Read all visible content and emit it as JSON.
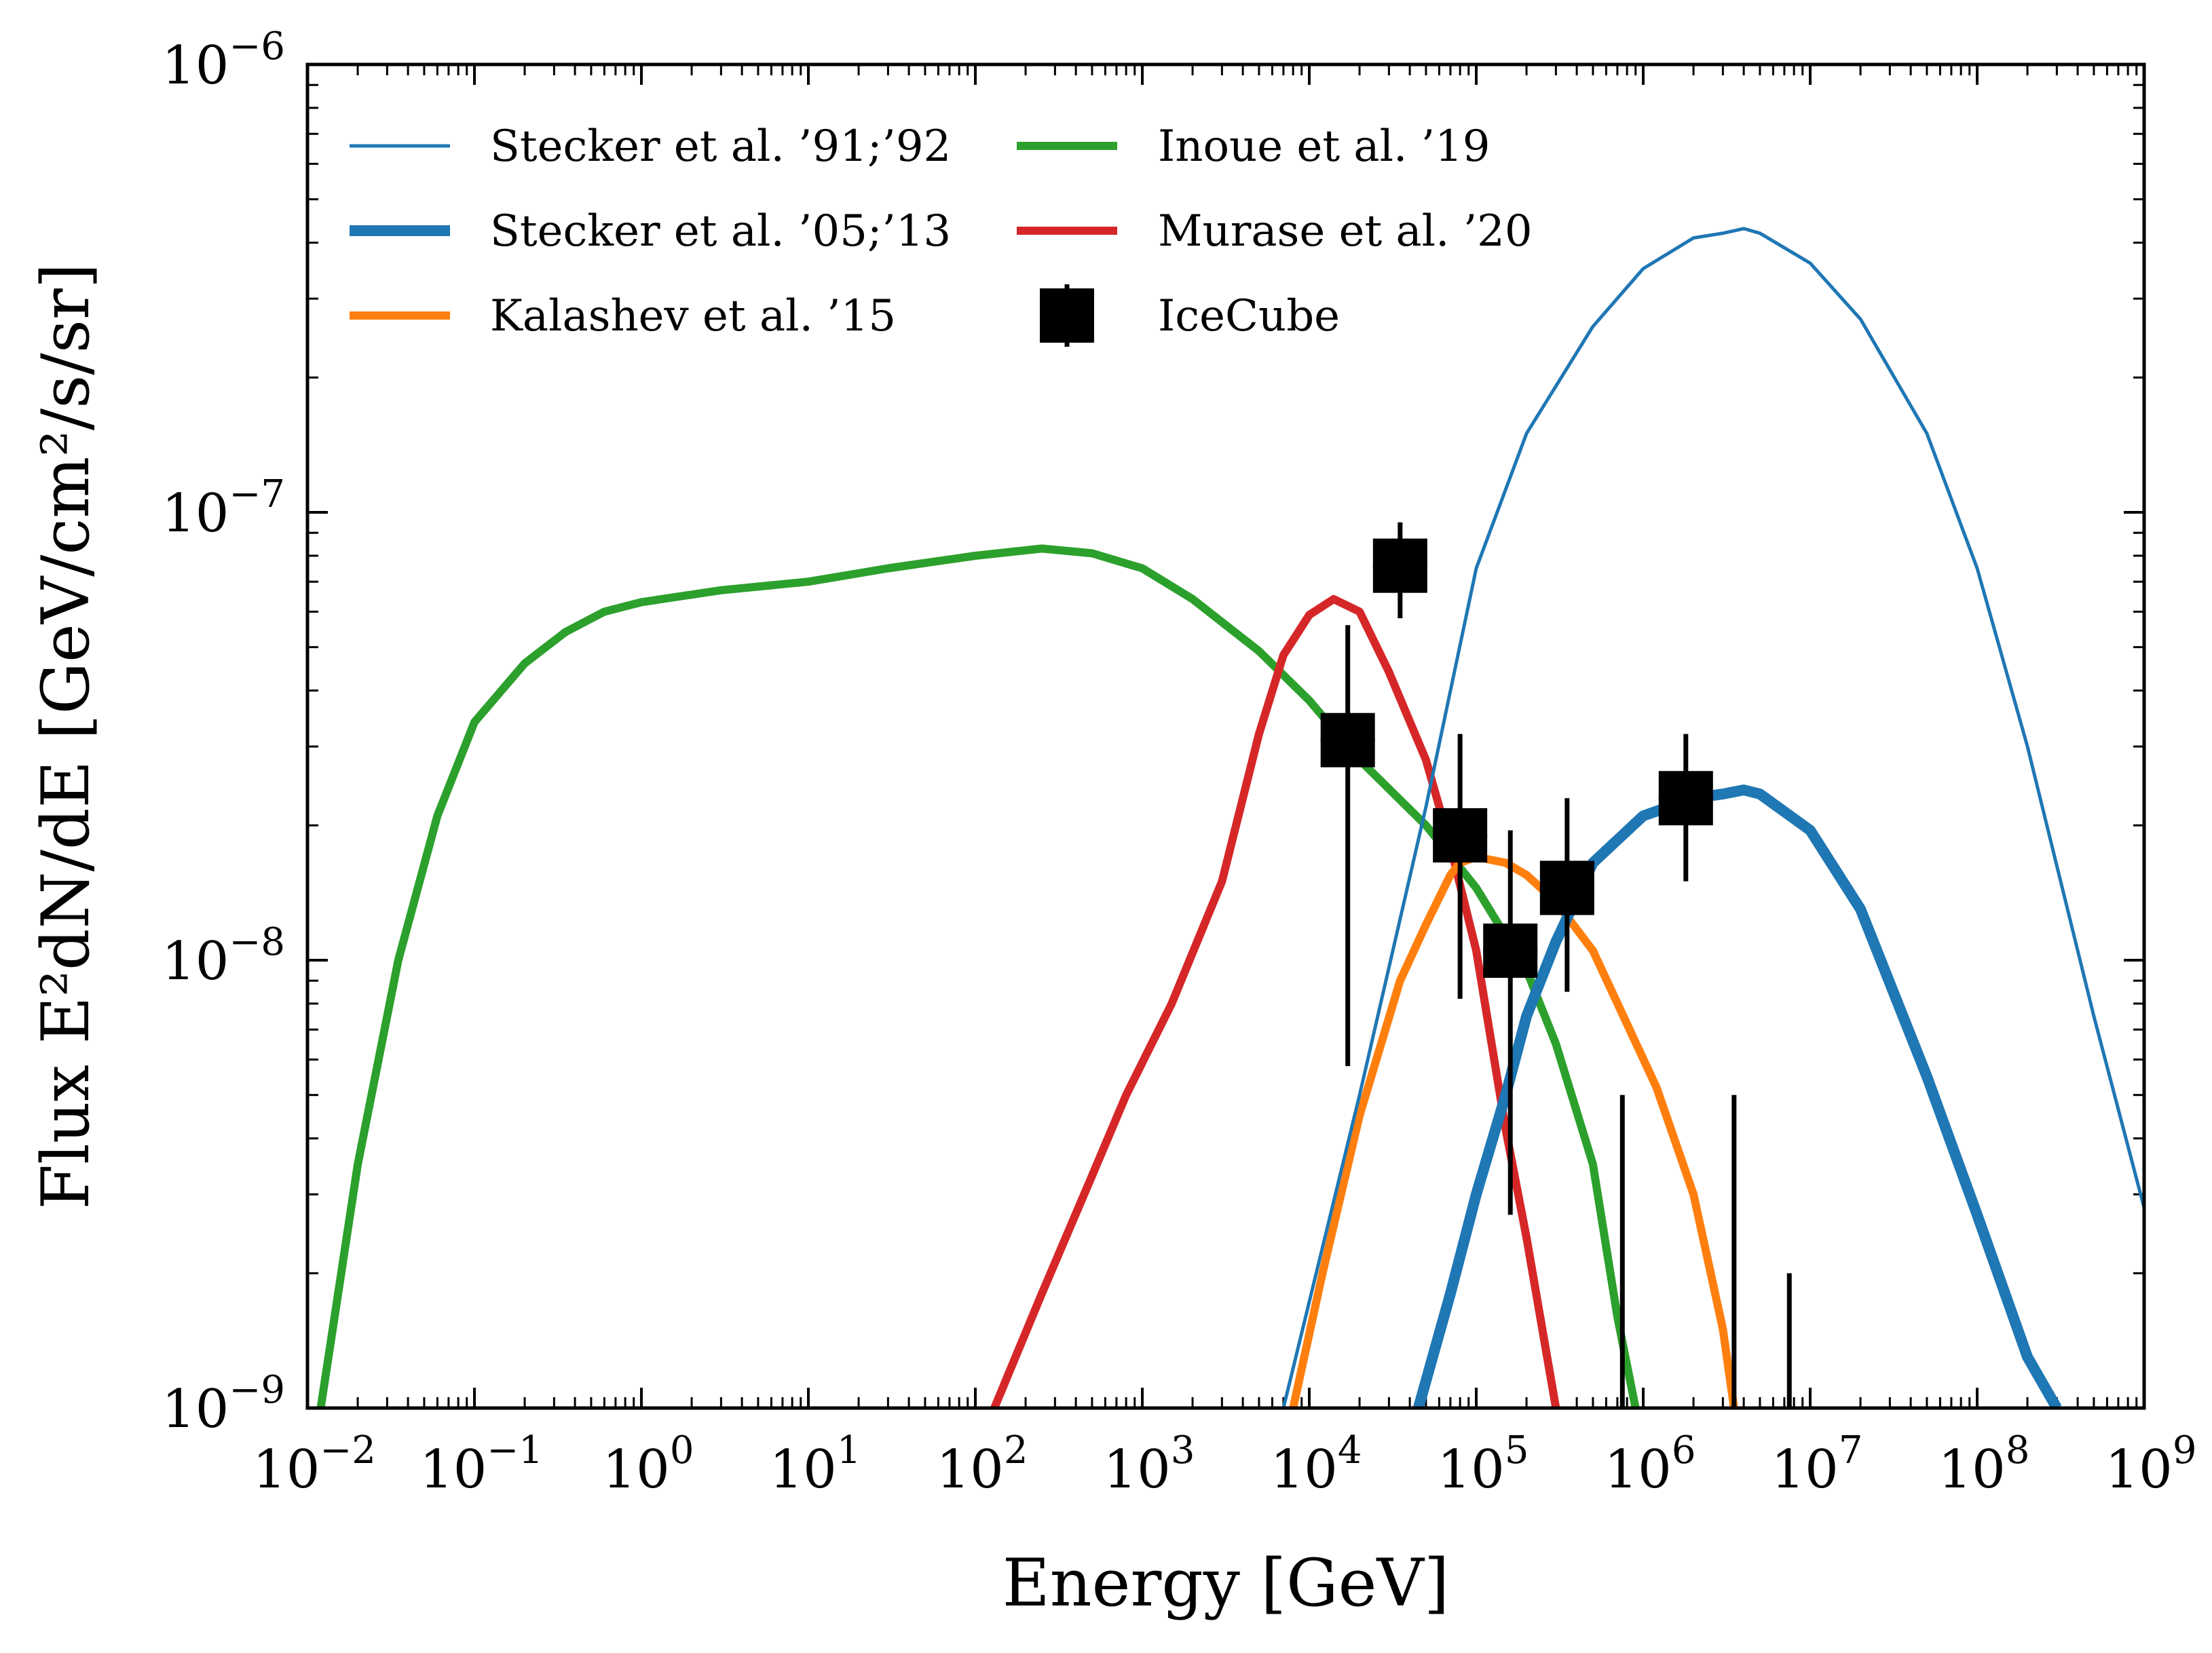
{
  "chart_data": {
    "type": "line",
    "title": "",
    "xlabel": "Energy [GeV]",
    "ylabel": "Flux E²dN/dE [GeV/cm²/s/sr]",
    "xscale": "log",
    "yscale": "log",
    "xlim": [
      0.01,
      1000000000
    ],
    "ylim": [
      1e-09,
      1e-06
    ],
    "x_tick_labels": [
      {
        "value": 0.01,
        "mantissa": "10",
        "exp": "−2"
      },
      {
        "value": 0.1,
        "mantissa": "10",
        "exp": "−1"
      },
      {
        "value": 1,
        "mantissa": "10",
        "exp": "0"
      },
      {
        "value": 10,
        "mantissa": "10",
        "exp": "1"
      },
      {
        "value": 100,
        "mantissa": "10",
        "exp": "2"
      },
      {
        "value": 1000,
        "mantissa": "10",
        "exp": "3"
      },
      {
        "value": 10000,
        "mantissa": "10",
        "exp": "4"
      },
      {
        "value": 100000,
        "mantissa": "10",
        "exp": "5"
      },
      {
        "value": 1000000,
        "mantissa": "10",
        "exp": "6"
      },
      {
        "value": 10000000,
        "mantissa": "10",
        "exp": "7"
      },
      {
        "value": 100000000,
        "mantissa": "10",
        "exp": "8"
      },
      {
        "value": 1000000000,
        "mantissa": "10",
        "exp": "9"
      }
    ],
    "y_tick_labels": [
      {
        "value": 1e-09,
        "mantissa": "10",
        "exp": "−9"
      },
      {
        "value": 1e-08,
        "mantissa": "10",
        "exp": "−8"
      },
      {
        "value": 1e-07,
        "mantissa": "10",
        "exp": "−7"
      },
      {
        "value": 1e-06,
        "mantissa": "10",
        "exp": "−6"
      }
    ],
    "legend": {
      "position": "top-left",
      "columns": 2
    },
    "series": [
      {
        "name": "Stecker et al. ’91;’92",
        "color": "#1f77b4",
        "style": "thin",
        "points": [
          [
            7000,
            1e-09
          ],
          [
            20000,
            5e-09
          ],
          [
            50000,
            2.2e-08
          ],
          [
            100000,
            7.5e-08
          ],
          [
            200000,
            1.5e-07
          ],
          [
            500000,
            2.6e-07
          ],
          [
            1000000,
            3.5e-07
          ],
          [
            2000000,
            4.1e-07
          ],
          [
            3000000,
            4.2e-07
          ],
          [
            4000000,
            4.3e-07
          ],
          [
            5000000,
            4.2e-07
          ],
          [
            10000000,
            3.6e-07
          ],
          [
            20000000,
            2.7e-07
          ],
          [
            50000000,
            1.5e-07
          ],
          [
            100000000,
            7.5e-08
          ],
          [
            200000000,
            3e-08
          ],
          [
            500000000,
            7.5e-09
          ],
          [
            1000000000,
            2.8e-09
          ]
        ]
      },
      {
        "name": "Stecker et al. ’05;’13",
        "color": "#1f77b4",
        "style": "thick",
        "points": [
          [
            45000,
            1e-09
          ],
          [
            70000,
            1.8e-09
          ],
          [
            100000,
            3e-09
          ],
          [
            150000,
            5e-09
          ],
          [
            200000,
            7.5e-09
          ],
          [
            300000,
            1.1e-08
          ],
          [
            500000,
            1.65e-08
          ],
          [
            1000000,
            2.1e-08
          ],
          [
            2000000,
            2.3e-08
          ],
          [
            3000000,
            2.35e-08
          ],
          [
            4000000,
            2.4e-08
          ],
          [
            5000000,
            2.35e-08
          ],
          [
            10000000,
            1.95e-08
          ],
          [
            20000000,
            1.3e-08
          ],
          [
            50000000,
            5.5e-09
          ],
          [
            100000000,
            2.7e-09
          ],
          [
            200000000,
            1.3e-09
          ],
          [
            300000000,
            1e-09
          ]
        ]
      },
      {
        "name": "Kalashev et al. ’15",
        "color": "#ff7f0e",
        "style": "medium",
        "points": [
          [
            8000,
            1e-09
          ],
          [
            12000,
            2e-09
          ],
          [
            20000,
            4.5e-09
          ],
          [
            35000,
            9e-09
          ],
          [
            50000,
            1.2e-08
          ],
          [
            70000,
            1.55e-08
          ],
          [
            80000,
            1.65e-08
          ],
          [
            100000,
            1.7e-08
          ],
          [
            150000,
            1.65e-08
          ],
          [
            200000,
            1.55e-08
          ],
          [
            300000,
            1.35e-08
          ],
          [
            500000,
            1.05e-08
          ],
          [
            800000,
            7.2e-09
          ],
          [
            1200000,
            5.2e-09
          ],
          [
            2000000,
            3e-09
          ],
          [
            3000000,
            1.5e-09
          ],
          [
            3500000,
            1e-09
          ]
        ]
      },
      {
        "name": "Inoue et al. ’19",
        "color": "#2ca02c",
        "style": "medium",
        "points": [
          [
            0.012,
            1e-09
          ],
          [
            0.02,
            3.5e-09
          ],
          [
            0.035,
            1e-08
          ],
          [
            0.06,
            2.1e-08
          ],
          [
            0.1,
            3.4e-08
          ],
          [
            0.2,
            4.6e-08
          ],
          [
            0.35,
            5.4e-08
          ],
          [
            0.6,
            6e-08
          ],
          [
            1,
            6.3e-08
          ],
          [
            3,
            6.7e-08
          ],
          [
            10,
            7e-08
          ],
          [
            30,
            7.5e-08
          ],
          [
            100,
            8e-08
          ],
          [
            250,
            8.3e-08
          ],
          [
            500,
            8.1e-08
          ],
          [
            1000,
            7.5e-08
          ],
          [
            2000,
            6.4e-08
          ],
          [
            5000,
            4.9e-08
          ],
          [
            10000,
            3.8e-08
          ],
          [
            20000,
            2.8e-08
          ],
          [
            50000,
            2e-08
          ],
          [
            100000,
            1.45e-08
          ],
          [
            200000,
            9.5e-09
          ],
          [
            300000,
            6.5e-09
          ],
          [
            500000,
            3.5e-09
          ],
          [
            700000,
            1.6e-09
          ],
          [
            900000,
            1e-09
          ]
        ]
      },
      {
        "name": "Murase et al. ’20",
        "color": "#d62728",
        "style": "medium",
        "points": [
          [
            130,
            1e-09
          ],
          [
            250,
            1.8e-09
          ],
          [
            500,
            3.3e-09
          ],
          [
            800,
            5e-09
          ],
          [
            1500,
            8e-09
          ],
          [
            3000,
            1.5e-08
          ],
          [
            5000,
            3.2e-08
          ],
          [
            7000,
            4.8e-08
          ],
          [
            10000,
            5.9e-08
          ],
          [
            14000,
            6.4e-08
          ],
          [
            20000,
            6e-08
          ],
          [
            30000,
            4.4e-08
          ],
          [
            50000,
            2.8e-08
          ],
          [
            70000,
            1.8e-08
          ],
          [
            100000,
            1.05e-08
          ],
          [
            150000,
            4.2e-09
          ],
          [
            200000,
            2.4e-09
          ],
          [
            300000,
            1e-09
          ]
        ]
      }
    ],
    "icecube": {
      "name": "IceCube",
      "color": "#000000",
      "points": [
        {
          "x": 17000,
          "y": 3.1e-08,
          "ylo": 5.8e-09,
          "yhi": 5.6e-08
        },
        {
          "x": 35000,
          "y": 7.6e-08,
          "ylo": 5.8e-08,
          "yhi": 9.5e-08
        },
        {
          "x": 80000,
          "y": 1.9e-08,
          "ylo": 8.2e-09,
          "yhi": 3.2e-08
        },
        {
          "x": 160000,
          "y": 1.05e-08,
          "ylo": 2.7e-09,
          "yhi": 1.95e-08
        },
        {
          "x": 350000,
          "y": 1.45e-08,
          "ylo": 8.5e-09,
          "yhi": 2.3e-08
        },
        {
          "x": 1800000,
          "y": 2.3e-08,
          "ylo": 1.5e-08,
          "yhi": 3.2e-08
        }
      ],
      "upper_limits": [
        {
          "x": 750000,
          "ylo": 1e-09,
          "yhi": 5e-09
        },
        {
          "x": 3500000,
          "ylo": 1e-09,
          "yhi": 5e-09
        },
        {
          "x": 7500000,
          "ylo": 1e-09,
          "yhi": 2e-09
        }
      ]
    }
  }
}
